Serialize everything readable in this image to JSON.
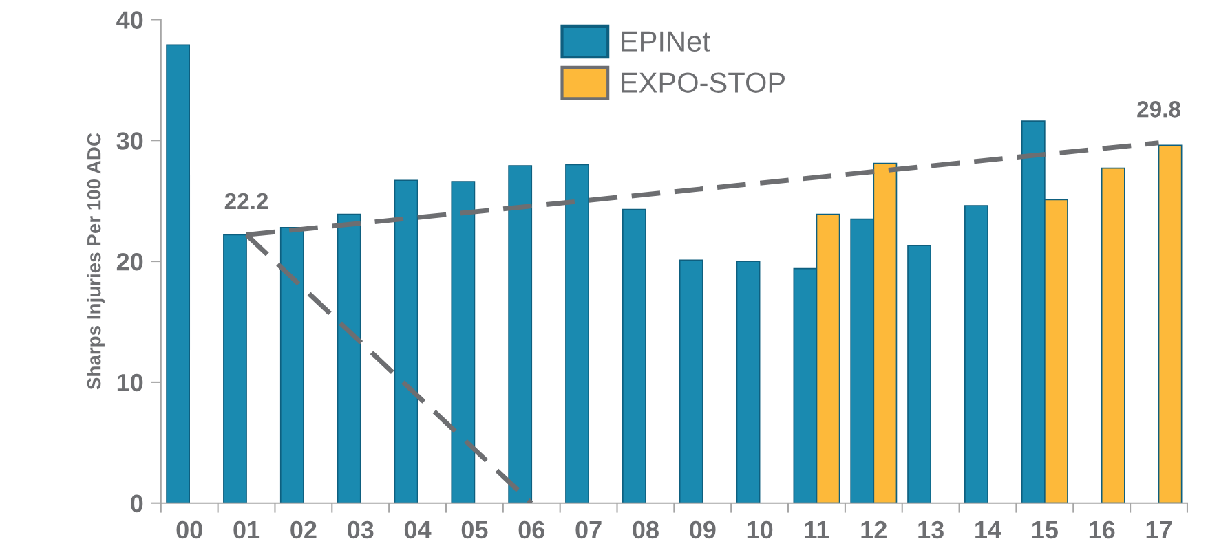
{
  "chart_data": {
    "type": "bar",
    "ylabel": "Sharps Injuries Per 100 ADC",
    "categories": [
      "00",
      "01",
      "02",
      "03",
      "04",
      "05",
      "06",
      "07",
      "08",
      "09",
      "10",
      "11",
      "12",
      "13",
      "14",
      "15",
      "16",
      "17"
    ],
    "series": [
      {
        "name": "EPINet",
        "color": "#1a8ab0",
        "values": [
          37.9,
          22.2,
          22.8,
          23.9,
          26.7,
          26.6,
          27.9,
          28.0,
          24.3,
          20.1,
          20.0,
          19.4,
          23.5,
          21.3,
          24.6,
          31.6,
          null,
          null
        ]
      },
      {
        "name": "EXPO-STOP",
        "color": "#fdb93a",
        "values": [
          null,
          null,
          null,
          null,
          null,
          null,
          null,
          null,
          null,
          null,
          null,
          23.9,
          28.1,
          null,
          null,
          25.1,
          27.7,
          29.6
        ]
      },
      {
        "type": "line",
        "color": "#6d6e71",
        "line_style": "dashed",
        "x": [
          "01",
          "17"
        ],
        "values": [
          22.2,
          29.8
        ]
      },
      {
        "type": "line",
        "color": "#6d6e71",
        "line_style": "dashed",
        "x": [
          "01",
          "06"
        ],
        "values": [
          22.2,
          0
        ]
      }
    ],
    "annotations": [
      {
        "text": "22.2",
        "x": "01",
        "y": 22.2
      },
      {
        "text": "29.8",
        "x": "17",
        "y": 29.8
      }
    ],
    "ylim": [
      0,
      40
    ],
    "yticks": [
      0,
      10,
      20,
      30,
      40
    ],
    "grid": false,
    "legend": "top"
  }
}
